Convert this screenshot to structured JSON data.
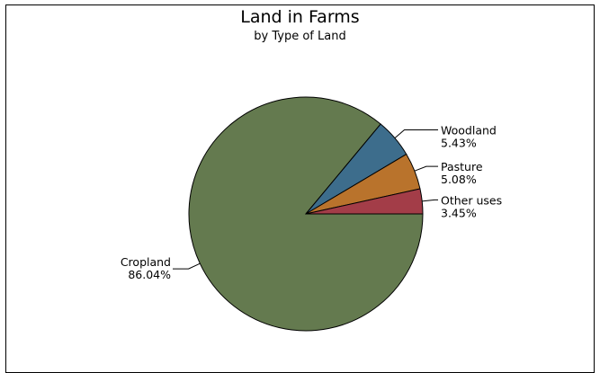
{
  "chart_data": {
    "type": "pie",
    "title": "Land in Farms",
    "subtitle": "by Type of Land",
    "slices": [
      {
        "label": "Cropland",
        "value": 86.04,
        "value_label": "86.04%",
        "color": "#647a4f"
      },
      {
        "label": "Woodland",
        "value": 5.43,
        "value_label": "5.43%",
        "color": "#3d6d8c"
      },
      {
        "label": "Pasture",
        "value": 5.08,
        "value_label": "5.08%",
        "color": "#b9732c"
      },
      {
        "label": "Other uses",
        "value": 3.45,
        "value_label": "3.45%",
        "color": "#a33d48"
      }
    ]
  }
}
